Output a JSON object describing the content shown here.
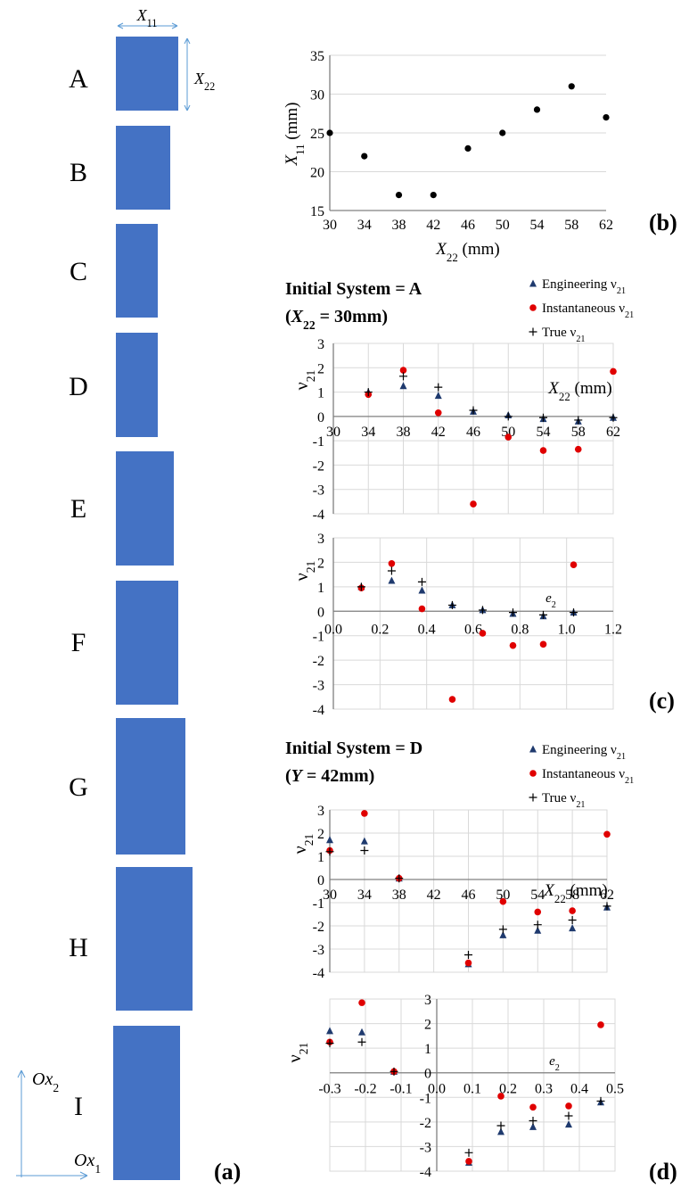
{
  "panel_a": {
    "panel_label": "(a)",
    "dim_width_label": "X11",
    "dim_height_label": "X22",
    "axis_x_label": "Ox1",
    "axis_y_label": "Ox2",
    "rectangles": [
      {
        "label": "A",
        "x11_mm": 25,
        "x22_mm": 30
      },
      {
        "label": "B",
        "x11_mm": 22,
        "x22_mm": 34
      },
      {
        "label": "C",
        "x11_mm": 17,
        "x22_mm": 38
      },
      {
        "label": "D",
        "x11_mm": 17,
        "x22_mm": 42
      },
      {
        "label": "E",
        "x11_mm": 23,
        "x22_mm": 46
      },
      {
        "label": "F",
        "x11_mm": 25,
        "x22_mm": 50
      },
      {
        "label": "G",
        "x11_mm": 28,
        "x22_mm": 54
      },
      {
        "label": "H",
        "x11_mm": 31,
        "x22_mm": 58
      },
      {
        "label": "I",
        "x11_mm": 27,
        "x22_mm": 62
      }
    ],
    "colors": {
      "rect_fill": "#4472c4",
      "arrow": "#5b9bd5"
    }
  },
  "labels": {
    "panel_b": "(b)",
    "panel_c": "(c)",
    "panel_d": "(d)",
    "c_title_line1": "Initial System = A",
    "c_title_line2": "(X22 = 30mm)",
    "d_title_line1": "Initial System = D",
    "d_title_line2": "(Y = 42mm)",
    "legend_engineering": "Engineering ν21",
    "legend_instantaneous": "Instantaneous ν21",
    "legend_true": "True ν21"
  },
  "colors": {
    "engineering": "#1f3a6e",
    "instantaneous": "#e00000",
    "true": "#000000",
    "grid": "#d9d9d9",
    "axis": "#808080"
  },
  "chart_data": [
    {
      "id": "b",
      "type": "scatter",
      "xlabel": "X22 (mm)",
      "ylabel": "X11 (mm)",
      "xlim": [
        30,
        62
      ],
      "ylim": [
        15,
        35
      ],
      "xticks": [
        30,
        34,
        38,
        42,
        46,
        50,
        54,
        58,
        62
      ],
      "yticks": [
        15,
        20,
        25,
        30,
        35
      ],
      "grid": "horizontal",
      "series": [
        {
          "x": [
            30,
            34,
            38,
            42,
            46,
            50,
            54,
            58,
            62
          ],
          "y": [
            25,
            22,
            17,
            17,
            23,
            25,
            28,
            31,
            27
          ]
        }
      ]
    },
    {
      "id": "c1",
      "type": "scatter",
      "xlabel": "X22 (mm)",
      "ylabel": "ν21",
      "xlim": [
        30,
        62
      ],
      "ylim": [
        -4,
        3
      ],
      "xticks": [
        30,
        34,
        38,
        42,
        46,
        50,
        54,
        58,
        62
      ],
      "yticks": [
        -4,
        -3,
        -2,
        -1,
        0,
        1,
        2,
        3
      ],
      "grid": "both",
      "series": [
        {
          "name": "Engineering ν21",
          "x": [
            34,
            38,
            42,
            46,
            50,
            54,
            58,
            62
          ],
          "y": [
            1.0,
            1.25,
            0.85,
            0.2,
            0.05,
            -0.1,
            -0.2,
            -0.05
          ]
        },
        {
          "name": "Instantaneous ν21",
          "x": [
            34,
            38,
            42,
            46,
            50,
            54,
            58,
            62
          ],
          "y": [
            0.9,
            1.9,
            0.15,
            -3.6,
            -0.85,
            -1.4,
            -1.35,
            1.85
          ]
        },
        {
          "name": "True ν21",
          "x": [
            34,
            38,
            42,
            46,
            50,
            54,
            58,
            62
          ],
          "y": [
            1.0,
            1.65,
            1.2,
            0.25,
            0.0,
            -0.05,
            -0.15,
            -0.05
          ]
        }
      ]
    },
    {
      "id": "c2",
      "type": "scatter",
      "xlabel": "e2",
      "ylabel": "ν21",
      "xlim": [
        0,
        1.2
      ],
      "ylim": [
        -4,
        3
      ],
      "xticks": [
        0.0,
        0.2,
        0.4,
        0.6,
        0.8,
        1.0,
        1.2
      ],
      "yticks": [
        -4,
        -3,
        -2,
        -1,
        0,
        1,
        2,
        3
      ],
      "grid": "both",
      "series": [
        {
          "name": "Engineering ν21",
          "x": [
            0.12,
            0.25,
            0.38,
            0.51,
            0.64,
            0.77,
            0.9,
            1.03
          ],
          "y": [
            1.0,
            1.25,
            0.85,
            0.25,
            0.05,
            -0.1,
            -0.2,
            -0.05
          ]
        },
        {
          "name": "Instantaneous ν21",
          "x": [
            0.12,
            0.25,
            0.38,
            0.51,
            0.64,
            0.77,
            0.9,
            1.03
          ],
          "y": [
            0.95,
            1.95,
            0.1,
            -3.6,
            -0.9,
            -1.4,
            -1.35,
            1.9
          ]
        },
        {
          "name": "True ν21",
          "x": [
            0.12,
            0.25,
            0.38,
            0.51,
            0.64,
            0.77,
            0.9,
            1.03
          ],
          "y": [
            1.0,
            1.65,
            1.2,
            0.25,
            0.05,
            -0.05,
            -0.15,
            -0.05
          ]
        }
      ]
    },
    {
      "id": "d1",
      "type": "scatter",
      "xlabel": "X22 (mm)",
      "ylabel": "ν21",
      "xlim": [
        30,
        62
      ],
      "ylim": [
        -4,
        3
      ],
      "xticks": [
        30,
        34,
        38,
        42,
        46,
        50,
        54,
        58,
        62
      ],
      "yticks": [
        -4,
        -3,
        -2,
        -1,
        0,
        1,
        2,
        3
      ],
      "grid": "both",
      "series": [
        {
          "name": "Engineering ν21",
          "x": [
            30,
            34,
            38,
            46,
            50,
            54,
            58,
            62
          ],
          "y": [
            1.7,
            1.65,
            0.05,
            -3.65,
            -2.4,
            -2.2,
            -2.1,
            -1.2
          ]
        },
        {
          "name": "Instantaneous ν21",
          "x": [
            30,
            34,
            38,
            46,
            50,
            54,
            58,
            62
          ],
          "y": [
            1.25,
            2.85,
            0.05,
            -3.6,
            -0.95,
            -1.4,
            -1.35,
            1.95
          ]
        },
        {
          "name": "True ν21",
          "x": [
            30,
            34,
            38,
            46,
            50,
            54,
            58,
            62
          ],
          "y": [
            1.2,
            1.25,
            0.05,
            -3.25,
            -2.15,
            -1.95,
            -1.75,
            -1.15
          ]
        }
      ]
    },
    {
      "id": "d2",
      "type": "scatter",
      "xlabel": "e2",
      "ylabel": "ν21",
      "xlim": [
        -0.3,
        0.5
      ],
      "ylim": [
        -4,
        3
      ],
      "xticks": [
        -0.3,
        -0.2,
        -0.1,
        0.0,
        0.1,
        0.2,
        0.3,
        0.4,
        0.5
      ],
      "yticks": [
        -4,
        -3,
        -2,
        -1,
        0,
        1,
        2,
        3
      ],
      "grid": "both",
      "series": [
        {
          "name": "Engineering ν21",
          "x": [
            -0.3,
            -0.21,
            -0.12,
            0.09,
            0.18,
            0.27,
            0.37,
            0.46
          ],
          "y": [
            1.7,
            1.65,
            0.05,
            -3.65,
            -2.4,
            -2.2,
            -2.1,
            -1.2
          ]
        },
        {
          "name": "Instantaneous ν21",
          "x": [
            -0.3,
            -0.21,
            -0.12,
            0.09,
            0.18,
            0.27,
            0.37,
            0.46
          ],
          "y": [
            1.25,
            2.85,
            0.05,
            -3.6,
            -0.95,
            -1.4,
            -1.35,
            1.95
          ]
        },
        {
          "name": "True ν21",
          "x": [
            -0.3,
            -0.21,
            -0.12,
            0.09,
            0.18,
            0.27,
            0.37,
            0.46
          ],
          "y": [
            1.2,
            1.25,
            0.05,
            -3.25,
            -2.15,
            -1.95,
            -1.75,
            -1.15
          ]
        }
      ]
    }
  ]
}
